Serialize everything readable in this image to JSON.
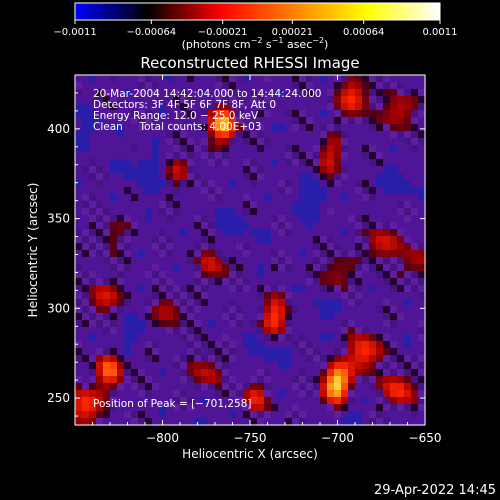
{
  "chart_data": {
    "type": "heatmap",
    "title": "Reconstructed RHESSI Image",
    "xlabel": "Heliocentric X (arcsec)",
    "ylabel": "Heliocentric Y (arcsec)",
    "xlim": [
      -850,
      -650
    ],
    "ylim": [
      235,
      430
    ],
    "xticks": [
      -800,
      -750,
      -700,
      -650
    ],
    "yticks": [
      250,
      300,
      350,
      400
    ],
    "xtick_labels": [
      "−800",
      "−750",
      "−700",
      "−650"
    ],
    "ytick_labels": [
      "250",
      "300",
      "350",
      "400"
    ],
    "colorbar": {
      "range": [
        -0.0011,
        0.0011
      ],
      "ticks": [
        -0.0011,
        -0.00064,
        -0.00021,
        0.00021,
        0.00064,
        0.0011
      ],
      "tick_labels": [
        "−0.0011",
        "−0.00064",
        "−0.00021",
        "0.00021",
        "0.00064",
        "0.0011"
      ],
      "unit_label": {
        "prefix": "(photons cm",
        "sup1": "−2",
        "mid1": " s",
        "sup2": "−1",
        "mid2": " asec",
        "sup3": "−2",
        "suffix": ")"
      },
      "colors": [
        "#0000ff",
        "#000000",
        "#ff0000",
        "#ff8000",
        "#ffff00",
        "#ffffff"
      ]
    },
    "info_lines": [
      "20-Mar-2004 14:42:04.000 to 14:44:24.000",
      "Detectors: 3F 4F 5F 6F 7F 8F, Att 0",
      "Energy Range: 12.0 − 25.0 keV",
      "Clean     Total counts: 4.00E+03"
    ],
    "peak_label": "Position of Peak = [−701,258]",
    "peak": {
      "x": -701,
      "y": 258
    },
    "bright_sources": [
      {
        "x": -765,
        "y": 402,
        "v": 0.0009
      },
      {
        "x": -690,
        "y": 418,
        "v": 0.0007
      },
      {
        "x": -665,
        "y": 410,
        "v": 0.0006
      },
      {
        "x": -705,
        "y": 385,
        "v": 0.0005
      },
      {
        "x": -675,
        "y": 335,
        "v": 0.0006
      },
      {
        "x": -700,
        "y": 320,
        "v": 0.0005
      },
      {
        "x": -735,
        "y": 295,
        "v": 0.0007
      },
      {
        "x": -770,
        "y": 325,
        "v": 0.0005
      },
      {
        "x": -795,
        "y": 300,
        "v": 0.0005
      },
      {
        "x": -835,
        "y": 305,
        "v": 0.0006
      },
      {
        "x": -830,
        "y": 265,
        "v": 0.0007
      },
      {
        "x": -845,
        "y": 245,
        "v": 0.0008
      },
      {
        "x": -775,
        "y": 265,
        "v": 0.0005
      },
      {
        "x": -748,
        "y": 250,
        "v": 0.0005
      },
      {
        "x": -701,
        "y": 258,
        "v": 0.0011
      },
      {
        "x": -685,
        "y": 275,
        "v": 0.0008
      },
      {
        "x": -665,
        "y": 255,
        "v": 0.0007
      },
      {
        "x": -655,
        "y": 325,
        "v": 0.0005
      },
      {
        "x": -790,
        "y": 378,
        "v": 0.0004
      },
      {
        "x": -830,
        "y": 340,
        "v": 0.0004
      }
    ],
    "negative_sources": [
      {
        "x": -810,
        "y": 375,
        "v": -0.0007
      },
      {
        "x": -715,
        "y": 360,
        "v": -0.0006
      },
      {
        "x": -760,
        "y": 345,
        "v": -0.0005
      },
      {
        "x": -820,
        "y": 285,
        "v": -0.0004
      },
      {
        "x": -740,
        "y": 275,
        "v": -0.0005
      },
      {
        "x": -710,
        "y": 300,
        "v": -0.0004
      },
      {
        "x": -665,
        "y": 370,
        "v": -0.0005
      },
      {
        "x": -840,
        "y": 400,
        "v": -0.0004
      },
      {
        "x": -770,
        "y": 240,
        "v": -0.0004
      },
      {
        "x": -690,
        "y": 240,
        "v": -0.0003
      }
    ]
  },
  "footer": {
    "date": "29-Apr-2022 14:45"
  }
}
